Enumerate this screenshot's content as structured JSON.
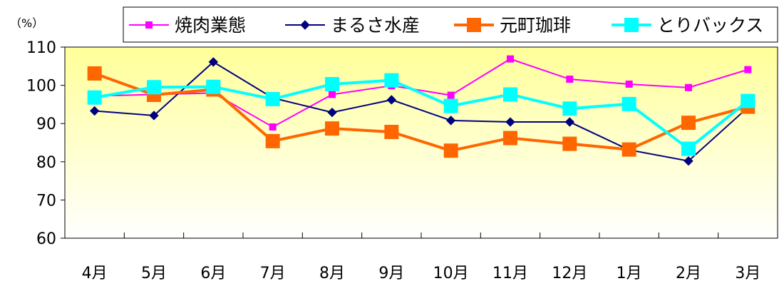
{
  "chart_data": {
    "type": "line",
    "ylabel": "（%）",
    "ylim": [
      60,
      110
    ],
    "yticks": [
      60,
      70,
      80,
      90,
      100,
      110
    ],
    "grid": false,
    "legend_position": "top",
    "categories": [
      "4月",
      "5月",
      "6月",
      "7月",
      "8月",
      "9月",
      "10月",
      "11月",
      "12月",
      "1月",
      "2月",
      "3月"
    ],
    "series": [
      {
        "name": "焼肉業態",
        "color": "#ff00ff",
        "marker": "square",
        "size": "small",
        "values": [
          97.2,
          97.6,
          98.0,
          89.1,
          97.6,
          99.9,
          97.4,
          106.9,
          101.6,
          100.3,
          99.4,
          104.1
        ]
      },
      {
        "name": "まるさ水産",
        "color": "#000080",
        "marker": "diamond",
        "size": "small",
        "values": [
          93.3,
          92.1,
          106.1,
          96.7,
          92.9,
          96.2,
          90.8,
          90.4,
          90.4,
          83.1,
          80.2,
          94.2
        ]
      },
      {
        "name": "元町珈琲",
        "color": "#ff6600",
        "marker": "square",
        "size": "large",
        "values": [
          103.1,
          97.5,
          98.9,
          85.4,
          88.7,
          87.8,
          82.9,
          86.2,
          84.7,
          83.2,
          90.2,
          94.4
        ]
      },
      {
        "name": "とりバックス",
        "color": "#00ffff",
        "marker": "square",
        "size": "large",
        "values": [
          96.8,
          99.5,
          99.6,
          96.4,
          100.3,
          101.3,
          94.6,
          97.6,
          93.9,
          95.1,
          83.4,
          95.9
        ]
      }
    ]
  }
}
